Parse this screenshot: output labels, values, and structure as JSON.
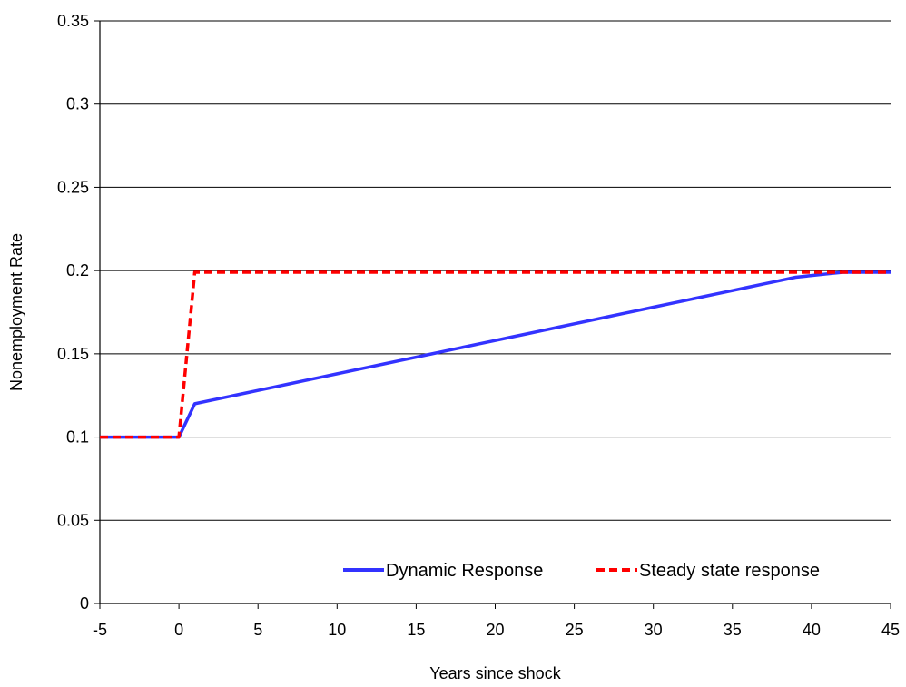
{
  "chart_data": {
    "type": "line",
    "title": "",
    "xlabel": "Years since shock",
    "ylabel": "Nonemployment Rate",
    "xlim": [
      -5,
      45
    ],
    "ylim": [
      0,
      0.35
    ],
    "x_ticks": [
      -5,
      0,
      5,
      10,
      15,
      20,
      25,
      30,
      35,
      40,
      45
    ],
    "x_tick_labels": [
      "-5",
      "0",
      "5",
      "10",
      "15",
      "20",
      "25",
      "30",
      "35",
      "40",
      "45"
    ],
    "y_ticks": [
      0,
      0.05,
      0.1,
      0.15,
      0.2,
      0.25,
      0.3,
      0.35
    ],
    "y_tick_labels": [
      "0",
      "0.05",
      "0.1",
      "0.15",
      "0.2",
      "0.25",
      "0.3",
      "0.35"
    ],
    "grid": "horizontal",
    "legend_position": "bottom",
    "series": [
      {
        "name": "Dynamic Response",
        "color": "#3333ff",
        "style": "solid",
        "x": [
          -5,
          -4,
          -3,
          -2,
          -1,
          0,
          1,
          2,
          3,
          4,
          5,
          6,
          7,
          8,
          9,
          10,
          11,
          12,
          13,
          14,
          15,
          16,
          17,
          18,
          19,
          20,
          21,
          22,
          23,
          24,
          25,
          26,
          27,
          28,
          29,
          30,
          31,
          32,
          33,
          34,
          35,
          36,
          37,
          38,
          39,
          40,
          41,
          42,
          43,
          44,
          45
        ],
        "y": [
          0.1,
          0.1,
          0.1,
          0.1,
          0.1,
          0.1,
          0.12,
          0.122,
          0.124,
          0.126,
          0.128,
          0.13,
          0.132,
          0.134,
          0.136,
          0.138,
          0.14,
          0.142,
          0.144,
          0.146,
          0.148,
          0.15,
          0.152,
          0.154,
          0.156,
          0.158,
          0.16,
          0.162,
          0.164,
          0.166,
          0.168,
          0.17,
          0.172,
          0.174,
          0.176,
          0.178,
          0.18,
          0.182,
          0.184,
          0.186,
          0.188,
          0.19,
          0.192,
          0.194,
          0.196,
          0.197,
          0.198,
          0.199,
          0.199,
          0.199,
          0.199
        ]
      },
      {
        "name": "Steady state response",
        "color": "#ff0000",
        "style": "dashed",
        "x": [
          -5,
          -4,
          -3,
          -2,
          -1,
          0,
          1,
          2,
          3,
          4,
          5,
          6,
          7,
          8,
          9,
          10,
          11,
          12,
          13,
          14,
          15,
          16,
          17,
          18,
          19,
          20,
          21,
          22,
          23,
          24,
          25,
          26,
          27,
          28,
          29,
          30,
          31,
          32,
          33,
          34,
          35,
          36,
          37,
          38,
          39,
          40,
          41,
          42,
          43,
          44,
          45
        ],
        "y": [
          0.1,
          0.1,
          0.1,
          0.1,
          0.1,
          0.1,
          0.199,
          0.199,
          0.199,
          0.199,
          0.199,
          0.199,
          0.199,
          0.199,
          0.199,
          0.199,
          0.199,
          0.199,
          0.199,
          0.199,
          0.199,
          0.199,
          0.199,
          0.199,
          0.199,
          0.199,
          0.199,
          0.199,
          0.199,
          0.199,
          0.199,
          0.199,
          0.199,
          0.199,
          0.199,
          0.199,
          0.199,
          0.199,
          0.199,
          0.199,
          0.199,
          0.199,
          0.199,
          0.199,
          0.199,
          0.199,
          0.199,
          0.199,
          0.199,
          0.199,
          0.199
        ]
      }
    ]
  }
}
